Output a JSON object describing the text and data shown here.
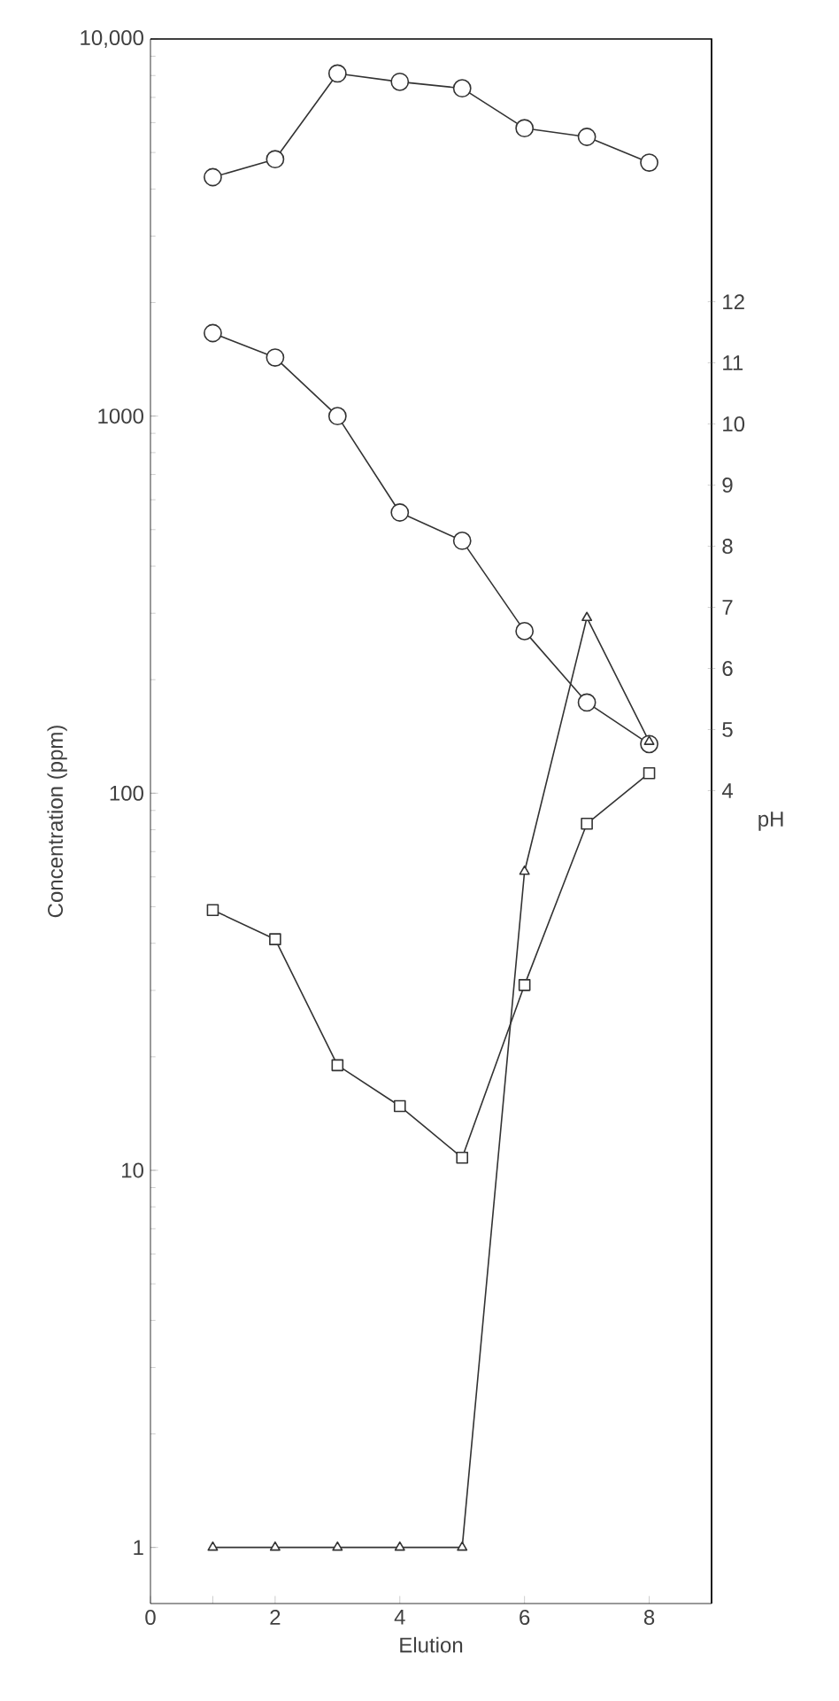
{
  "chart_data": {
    "type": "line",
    "xlabel": "Elution",
    "ylabel": "Concentration (ppm)",
    "y2label": "pH",
    "log": "y",
    "xlim": [
      0,
      9
    ],
    "ylim": [
      0.71,
      10000
    ],
    "y2lim": [
      -9.3,
      16.3
    ],
    "xticks": [
      0,
      {
        "value": 1,
        "label": null
      },
      2,
      4,
      6,
      8
    ],
    "yticks": [
      1,
      10,
      100,
      1000,
      {
        "value": 10000,
        "label": "10,000"
      }
    ],
    "y2ticks": [
      4,
      5,
      6,
      7,
      8,
      9,
      10,
      11,
      12
    ],
    "grid": false,
    "line_style": "solid",
    "series": [
      {
        "color": "#333333",
        "marker": "circle",
        "x": [
          1,
          2,
          3,
          4,
          5,
          6,
          7,
          8
        ],
        "values": [
          4300,
          4800,
          8100,
          7700,
          7400,
          5800,
          5500,
          4700
        ]
      },
      {
        "color": "#333333",
        "marker": "circle",
        "x": [
          1,
          2,
          3,
          4,
          5,
          6,
          7,
          8
        ],
        "values": [
          1660,
          1430,
          1000,
          555,
          467,
          269,
          174,
          135
        ]
      },
      {
        "color": "#333333",
        "marker": "square",
        "x": [
          1,
          2,
          3,
          4,
          5,
          6,
          7,
          8
        ],
        "values": [
          49,
          41,
          19,
          14.8,
          10.8,
          31,
          83,
          113
        ]
      },
      {
        "color": "#333333",
        "marker": "triangle",
        "x": [
          1,
          2,
          3,
          4,
          5,
          6,
          7,
          8
        ],
        "values": [
          1,
          1,
          1,
          1,
          1,
          62,
          292,
          137
        ]
      }
    ]
  }
}
